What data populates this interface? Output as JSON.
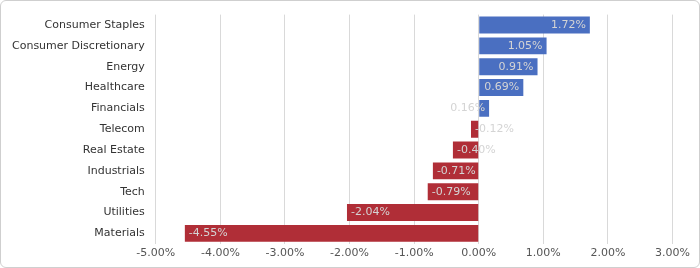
{
  "chart_data": {
    "type": "bar",
    "orientation": "horizontal",
    "categories": [
      "Consumer Staples",
      "Consumer Discretionary",
      "Energy",
      "Healthcare",
      "Financials",
      "Telecom",
      "Real Estate",
      "Industrials",
      "Tech",
      "Utilities",
      "Materials"
    ],
    "values": [
      1.72,
      1.05,
      0.91,
      0.69,
      0.16,
      -0.12,
      -0.4,
      -0.71,
      -0.79,
      -2.04,
      -4.55
    ],
    "value_labels": [
      "1.72%",
      "1.05%",
      "0.91%",
      "0.69%",
      "0.16%",
      "-0.12%",
      "-0.40%",
      "-0.71%",
      "-0.79%",
      "-2.04%",
      "-4.55%"
    ],
    "colors": [
      "#4a6fc1",
      "#4a6fc1",
      "#4a6fc1",
      "#4a6fc1",
      "#4a6fc1",
      "#b02e37",
      "#b02e37",
      "#b02e37",
      "#b02e37",
      "#b02e37",
      "#b02e37"
    ],
    "xlim": [
      -5,
      3
    ],
    "xticks": [
      {
        "value": -5,
        "label": "-5.00%"
      },
      {
        "value": -4,
        "label": "-4.00%"
      },
      {
        "value": -3,
        "label": "-3.00%"
      },
      {
        "value": -2,
        "label": "-2.00%"
      },
      {
        "value": -1,
        "label": "-1.00%"
      },
      {
        "value": 0,
        "label": "0.00%"
      },
      {
        "value": 1,
        "label": "1.00%"
      },
      {
        "value": 2,
        "label": "2.00%"
      },
      {
        "value": 3,
        "label": "3.00%"
      }
    ],
    "grid": true,
    "data_labels": true
  }
}
